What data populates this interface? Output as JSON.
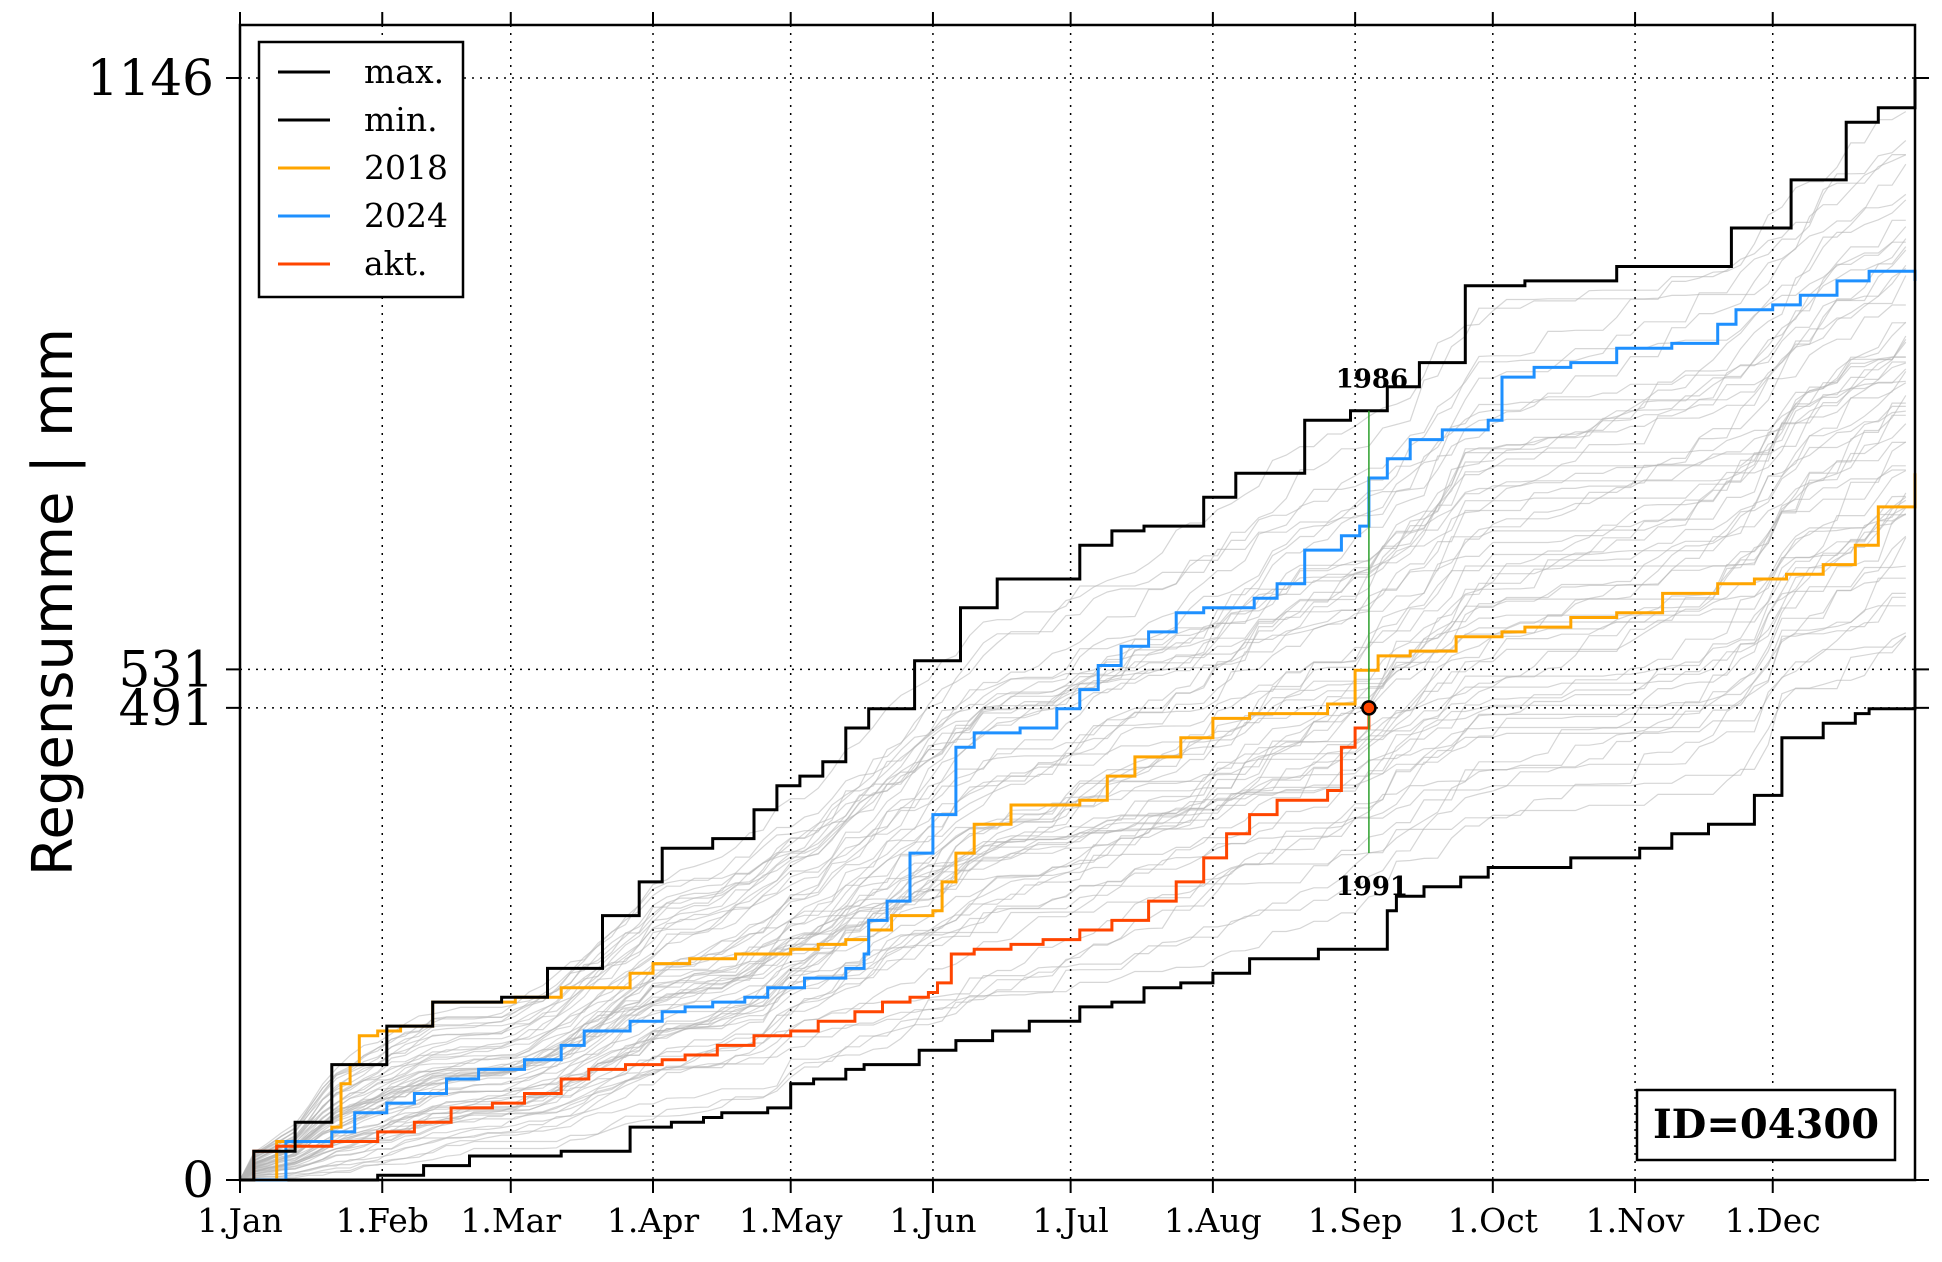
{
  "chart_data": {
    "type": "line",
    "title": "",
    "xlabel": "",
    "ylabel": "Regensumme | mm",
    "xlim": [
      0,
      365
    ],
    "ylim": [
      0,
      1146
    ],
    "x_ticks": [
      {
        "day": 0,
        "label": "1.Jan"
      },
      {
        "day": 31,
        "label": "1.Feb"
      },
      {
        "day": 59,
        "label": "1.Mar"
      },
      {
        "day": 90,
        "label": "1.Apr"
      },
      {
        "day": 120,
        "label": "1.May"
      },
      {
        "day": 151,
        "label": "1.Jun"
      },
      {
        "day": 181,
        "label": "1.Jul"
      },
      {
        "day": 212,
        "label": "1.Aug"
      },
      {
        "day": 243,
        "label": "1.Sep"
      },
      {
        "day": 273,
        "label": "1.Oct"
      },
      {
        "day": 304,
        "label": "1.Nov"
      },
      {
        "day": 334,
        "label": "1.Dec"
      }
    ],
    "y_ticks": [
      {
        "value": 0,
        "label": "0"
      },
      {
        "value": 491,
        "label": "491"
      },
      {
        "value": 531,
        "label": "531"
      },
      {
        "value": 1146,
        "label": "1146"
      }
    ],
    "grid": true,
    "legend_position": "top-left",
    "series": [
      {
        "name": "max.",
        "color": "#000000",
        "x": [
          0,
          3,
          12,
          20,
          32,
          42,
          57,
          67,
          79,
          87,
          92,
          96,
          103,
          112,
          117,
          122,
          127,
          132,
          137,
          147,
          157,
          165,
          176,
          183,
          187,
          190,
          197,
          210,
          217,
          232,
          242,
          250,
          257,
          267,
          280,
          300,
          325,
          338,
          350,
          357,
          365
        ],
        "y": [
          0,
          30,
          60,
          120,
          160,
          185,
          190,
          220,
          275,
          310,
          345,
          345,
          355,
          385,
          410,
          420,
          435,
          470,
          490,
          540,
          595,
          625,
          625,
          660,
          660,
          675,
          680,
          710,
          735,
          790,
          800,
          825,
          850,
          930,
          935,
          950,
          990,
          1040,
          1100,
          1115,
          1146
        ]
      },
      {
        "name": "min.",
        "color": "#000000",
        "x": [
          0,
          20,
          30,
          40,
          50,
          60,
          70,
          85,
          94,
          101,
          105,
          115,
          120,
          125,
          132,
          136,
          148,
          156,
          164,
          172,
          183,
          190,
          197,
          205,
          212,
          220,
          235,
          250,
          252,
          258,
          266,
          272,
          290,
          305,
          312,
          320,
          330,
          336,
          345,
          352,
          355,
          365
        ],
        "y": [
          0,
          0,
          5,
          15,
          25,
          25,
          30,
          55,
          60,
          65,
          70,
          75,
          100,
          105,
          115,
          120,
          135,
          145,
          155,
          165,
          180,
          185,
          200,
          205,
          215,
          230,
          240,
          280,
          295,
          305,
          315,
          325,
          335,
          345,
          360,
          370,
          400,
          460,
          475,
          485,
          490,
          531
        ]
      },
      {
        "name": "2018",
        "color": "#ffa500",
        "x": [
          0,
          8,
          18,
          20,
          22,
          24,
          26,
          30,
          35,
          40,
          42,
          47,
          50,
          55,
          60,
          70,
          85,
          90,
          98,
          108,
          112,
          120,
          126,
          132,
          137,
          142,
          151,
          153,
          156,
          160,
          168,
          175,
          183,
          189,
          195,
          200,
          205,
          212,
          220,
          227,
          237,
          243,
          248,
          255,
          265,
          275,
          280,
          290,
          300,
          310,
          322,
          330,
          337,
          345,
          352,
          357,
          365
        ],
        "y": [
          0,
          40,
          40,
          55,
          100,
          120,
          150,
          155,
          160,
          160,
          185,
          185,
          185,
          185,
          190,
          200,
          215,
          225,
          230,
          235,
          235,
          240,
          245,
          250,
          260,
          275,
          280,
          310,
          340,
          370,
          390,
          390,
          395,
          420,
          440,
          440,
          460,
          480,
          485,
          485,
          495,
          530,
          545,
          550,
          565,
          570,
          575,
          585,
          590,
          610,
          620,
          625,
          630,
          640,
          660,
          700,
          735
        ]
      },
      {
        "name": "2024",
        "color": "#1e90ff",
        "x": [
          0,
          10,
          20,
          25,
          32,
          38,
          45,
          52,
          62,
          70,
          75,
          85,
          92,
          97,
          103,
          110,
          115,
          123,
          132,
          136,
          137,
          141,
          146,
          151,
          156,
          160,
          170,
          178,
          183,
          187,
          192,
          198,
          204,
          210,
          216,
          221,
          226,
          232,
          240,
          244,
          246,
          250,
          255,
          262,
          272,
          275,
          282,
          290,
          300,
          312,
          322,
          326,
          334,
          340,
          348,
          355,
          365
        ],
        "y": [
          0,
          40,
          50,
          70,
          80,
          90,
          105,
          115,
          125,
          140,
          155,
          165,
          175,
          180,
          185,
          190,
          200,
          210,
          220,
          235,
          270,
          290,
          340,
          380,
          450,
          465,
          470,
          490,
          510,
          535,
          555,
          570,
          590,
          595,
          595,
          605,
          620,
          655,
          670,
          680,
          730,
          750,
          770,
          780,
          790,
          835,
          845,
          850,
          865,
          870,
          890,
          905,
          910,
          920,
          935,
          945,
          935
        ]
      },
      {
        "name": "akt.",
        "color": "#ff4500",
        "x": [
          0,
          3,
          8,
          15,
          20,
          30,
          38,
          46,
          55,
          62,
          70,
          76,
          84,
          92,
          97,
          104,
          112,
          120,
          126,
          134,
          140,
          146,
          150,
          152,
          155,
          160,
          168,
          175,
          183,
          190,
          198,
          204,
          210,
          215,
          220,
          226,
          232,
          237,
          240,
          243,
          246
        ],
        "y": [
          0,
          30,
          35,
          35,
          40,
          50,
          60,
          75,
          80,
          90,
          105,
          115,
          120,
          125,
          130,
          140,
          150,
          155,
          165,
          175,
          185,
          190,
          195,
          205,
          235,
          240,
          245,
          250,
          260,
          270,
          290,
          310,
          335,
          360,
          380,
          395,
          395,
          405,
          450,
          470,
          491
        ]
      }
    ],
    "markers": [
      {
        "label": "1986",
        "x_day": 246,
        "y_value": 800
      },
      {
        "label": "1991",
        "x_day": 246,
        "y_value": 340
      }
    ],
    "current_point": {
      "x_day": 246,
      "y_value": 491
    },
    "annotation_box": "ID=04300",
    "background_series_count": 60
  }
}
